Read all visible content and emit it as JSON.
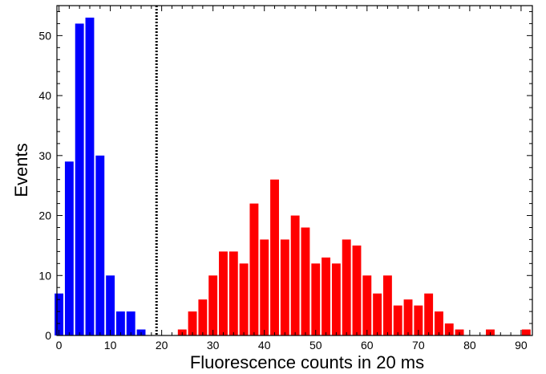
{
  "chart_data": {
    "type": "bar",
    "xlabel": "Fluorescence counts in 20 ms",
    "ylabel": "Events",
    "xlim": [
      -0.4,
      92.2
    ],
    "ylim": [
      0,
      55
    ],
    "xticks": [
      0,
      10,
      20,
      30,
      40,
      50,
      60,
      70,
      80,
      90
    ],
    "yticks": [
      0,
      10,
      20,
      30,
      40,
      50
    ],
    "threshold_x": 19,
    "grid": false,
    "series": [
      {
        "color": "#0000ff",
        "x": [
          0,
          2,
          4,
          6,
          8,
          10,
          12,
          14,
          16
        ],
        "values": [
          7,
          29,
          52,
          53,
          30,
          10,
          4,
          4,
          1
        ]
      },
      {
        "color": "#ff0000",
        "x": [
          24,
          26,
          28,
          30,
          32,
          34,
          36,
          38,
          40,
          42,
          44,
          46,
          48,
          50,
          52,
          54,
          56,
          58,
          60,
          62,
          64,
          66,
          68,
          70,
          72,
          74,
          76,
          78,
          84,
          91
        ],
        "values": [
          1,
          4,
          6,
          10,
          14,
          14,
          12,
          22,
          16,
          26,
          16,
          20,
          18,
          12,
          13,
          12,
          16,
          15,
          10,
          7,
          10,
          5,
          6,
          5,
          7,
          4,
          2,
          1,
          1,
          1
        ]
      }
    ]
  }
}
